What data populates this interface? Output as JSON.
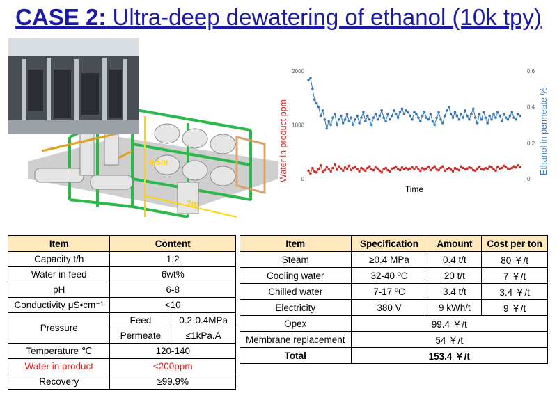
{
  "title": {
    "case": "CASE 2:",
    "rest": " Ultra-deep dewatering of ethanol (10k tpy)"
  },
  "render": {
    "height_label": "4.5m",
    "length_label": "7m"
  },
  "chart_data": {
    "type": "scatter",
    "xlabel": "Time",
    "ylabel_left": "Water in product ppm",
    "ylabel_right": "Ethanol in permeate %",
    "left_ticks": [
      "2000",
      "1000",
      "0"
    ],
    "right_ticks": [
      "0.6",
      "0.4",
      "0.2",
      "0"
    ],
    "ylim_left": [
      0,
      2000
    ],
    "ylim_right": [
      0,
      0.6
    ],
    "colors": {
      "water": "#c9302c",
      "ethanol": "#3a78b8"
    },
    "series": [
      {
        "axis": "right",
        "values": [
          0.55,
          0.56,
          0.5,
          0.44,
          0.42,
          0.4,
          0.35,
          0.38,
          0.33,
          0.28,
          0.32,
          0.3,
          0.34,
          0.36,
          0.3,
          0.33,
          0.35,
          0.31,
          0.33,
          0.36,
          0.32,
          0.34,
          0.3,
          0.33,
          0.35,
          0.31,
          0.34,
          0.37,
          0.32,
          0.35,
          0.33,
          0.3,
          0.34,
          0.36,
          0.33,
          0.35,
          0.38,
          0.34,
          0.32,
          0.36,
          0.33,
          0.35,
          0.38,
          0.36,
          0.34,
          0.37,
          0.39,
          0.36,
          0.38,
          0.37,
          0.35,
          0.33,
          0.37,
          0.36,
          0.34,
          0.32,
          0.35,
          0.37,
          0.34,
          0.33,
          0.36,
          0.32,
          0.3,
          0.34,
          0.37,
          0.33,
          0.31,
          0.35,
          0.38,
          0.4,
          0.36,
          0.34,
          0.37,
          0.35,
          0.33,
          0.36,
          0.34,
          0.38,
          0.35,
          0.33,
          0.36,
          0.39,
          0.34,
          0.31,
          0.36,
          0.33,
          0.37,
          0.34,
          0.31,
          0.35,
          0.33,
          0.36,
          0.34,
          0.37,
          0.35,
          0.32,
          0.36,
          0.34,
          0.33,
          0.35,
          0.37,
          0.34,
          0.33,
          0.36,
          0.35
        ]
      },
      {
        "axis": "left",
        "values": [
          150,
          100,
          200,
          140,
          120,
          180,
          250,
          130,
          160,
          220,
          180,
          140,
          200,
          260,
          170,
          230,
          190,
          150,
          210,
          180,
          240,
          160,
          200,
          220,
          180,
          140,
          200,
          170,
          150,
          200,
          230,
          180,
          160,
          210,
          190,
          150,
          120,
          180,
          200,
          160,
          140,
          190,
          200,
          220,
          180,
          160,
          210,
          180,
          200,
          170,
          190,
          210,
          180,
          220,
          180,
          150,
          200,
          170,
          190,
          220,
          160,
          200,
          230,
          170,
          160,
          200,
          230,
          150,
          180,
          200,
          170,
          140,
          200,
          180,
          160,
          230,
          200,
          180,
          190,
          210,
          200,
          160,
          150,
          190,
          220,
          180,
          170,
          200,
          180,
          230,
          210,
          180,
          150,
          220,
          190,
          200,
          240,
          220,
          190,
          180,
          200,
          230,
          210,
          250,
          220
        ]
      }
    ]
  },
  "left_table": {
    "header": [
      "Item",
      "Content"
    ],
    "rows": [
      [
        "Capacity t/h",
        "1.2"
      ],
      [
        "Water in feed",
        "6wt%"
      ],
      [
        "pH",
        "6-8"
      ],
      [
        "Conductivity μS•cm⁻¹",
        "<10"
      ]
    ],
    "pressure": {
      "label": "Pressure",
      "feed_label": "Feed",
      "feed_value": "0.2-0.4MPa",
      "permeate_label": "Permeate",
      "permeate_value": "≤1kPa.A"
    },
    "rows2": [
      [
        "Temperature ℃",
        "120-140"
      ],
      [
        "Water in product",
        "<200ppm"
      ],
      [
        "Recovery",
        "≥99.9%"
      ]
    ]
  },
  "right_table": {
    "header": [
      "Item",
      "Specification",
      "Amount",
      "Cost per ton"
    ],
    "rows": [
      [
        "Steam",
        "≥0.4 MPa",
        "0.4 t/t",
        "80 ￥/t"
      ],
      [
        "Cooling water",
        "32-40 ºC",
        "20 t/t",
        "7 ￥/t"
      ],
      [
        "Chilled water",
        "7-17 ºC",
        "3.4 t/t",
        "3.4 ￥/t"
      ],
      [
        "Electricity",
        "380 V",
        "9 kWh/t",
        "9 ￥/t"
      ]
    ],
    "opex": [
      "Opex",
      "99.4 ￥/t"
    ],
    "membrane": [
      "Membrane replacement",
      "54 ￥/t"
    ],
    "total": [
      "Total",
      "153.4 ￥/t"
    ]
  }
}
